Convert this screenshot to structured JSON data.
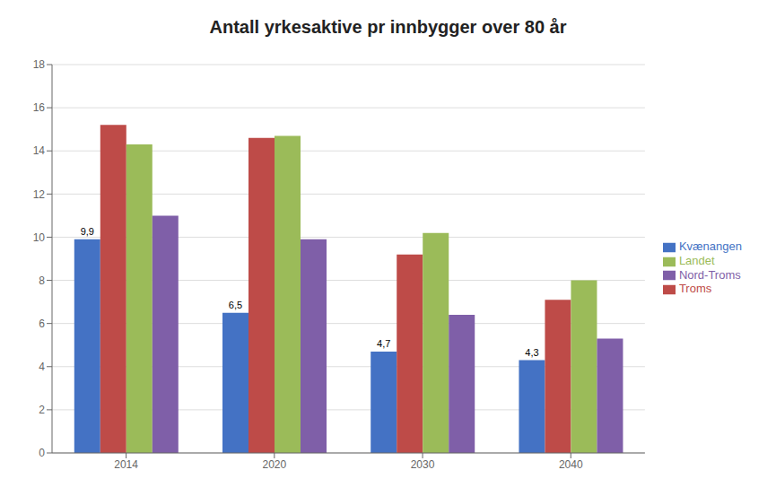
{
  "chart_data": {
    "type": "bar",
    "title": "Antall yrkesaktive pr innbygger over 80 år",
    "categories": [
      "2014",
      "2020",
      "2030",
      "2040"
    ],
    "series": [
      {
        "name": "Kvænangen",
        "color": "#4472C4",
        "values": [
          9.9,
          6.5,
          4.7,
          4.3
        ],
        "value_labels": [
          "9,9",
          "6,5",
          "4,7",
          "4,3"
        ]
      },
      {
        "name": "Troms",
        "color": "#BE4B48",
        "values": [
          15.2,
          14.6,
          9.2,
          7.1
        ]
      },
      {
        "name": "Landet",
        "color": "#9BBB59",
        "values": [
          14.3,
          14.7,
          10.2,
          8.0
        ]
      },
      {
        "name": "Nord-Troms",
        "color": "#7F5FA8",
        "values": [
          11.0,
          9.9,
          6.4,
          5.3
        ]
      }
    ],
    "ylim": [
      0,
      18
    ],
    "yticks": [
      0,
      2,
      4,
      6,
      8,
      10,
      12,
      14,
      16,
      18
    ],
    "grid": true,
    "legend": "right"
  }
}
